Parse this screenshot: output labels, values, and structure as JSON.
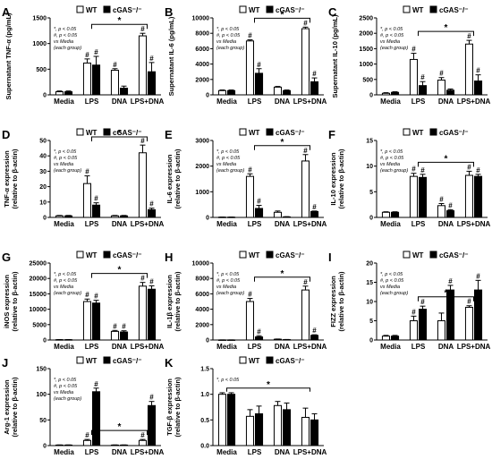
{
  "legend": {
    "wt": "WT",
    "ko": "cGAS⁻/⁻"
  },
  "colors": {
    "wt": "#ffffff",
    "ko": "#000000",
    "stroke": "#000000"
  },
  "significance": {
    "star": "*",
    "hash": "#"
  },
  "chart_data": [
    {
      "panel": "A",
      "type": "bar",
      "categories": [
        "Media",
        "LPS",
        "DNA",
        "LPS+DNA"
      ],
      "series": [
        {
          "name": "WT",
          "values": [
            60,
            620,
            480,
            1150
          ],
          "errors": [
            15,
            80,
            30,
            50
          ]
        },
        {
          "name": "cGAS⁻/⁻",
          "values": [
            60,
            580,
            130,
            450
          ],
          "errors": [
            15,
            170,
            40,
            180
          ]
        }
      ],
      "ylabel": "Supernatant TNF-α (pg/mL)",
      "ylim": [
        0,
        1500
      ],
      "yticks": [
        "0",
        "500",
        "1000",
        "1500"
      ],
      "note": [
        "*, p < 0.05",
        "#, p < 0.05",
        "vs Media",
        "(each group)"
      ],
      "noteStart": 6,
      "noteX": 14,
      "pair": [
        [
          "WT",
          "cGAS⁻/⁻"
        ]
      ],
      "hashes": {
        "wt": [
          1,
          2,
          3
        ],
        "ko": [
          1,
          3
        ]
      }
    },
    {
      "panel": "B",
      "type": "bar",
      "categories": [
        "Media",
        "LPS",
        "DNA",
        "LPS+DNA"
      ],
      "series": [
        {
          "name": "WT",
          "values": [
            550,
            7000,
            1000,
            8600
          ],
          "errors": [
            80,
            150,
            90,
            200
          ]
        },
        {
          "name": "cGAS⁻/⁻",
          "values": [
            550,
            2800,
            550,
            1700
          ],
          "errors": [
            80,
            600,
            80,
            500
          ]
        }
      ],
      "ylabel": "Supernatant IL-6 (pg/mL)",
      "ylim": [
        0,
        10000
      ],
      "yticks": [
        "0",
        "2000",
        "4000",
        "6000",
        "8000",
        "10000"
      ],
      "note": [
        "*, p < 0.05",
        "#, p < 0.05",
        "vs Media",
        "(each group)"
      ],
      "noteStart": 9,
      "noteX": 24,
      "pair": [
        [
          "WT",
          "cGAS⁻/⁻"
        ]
      ],
      "hashes": {
        "wt": [
          1,
          3
        ],
        "ko": [
          1,
          3
        ]
      }
    },
    {
      "panel": "C",
      "type": "bar",
      "categories": [
        "Media",
        "LPS",
        "DNA",
        "LPS+DNA"
      ],
      "series": [
        {
          "name": "WT",
          "values": [
            50,
            1150,
            480,
            1650
          ],
          "errors": [
            20,
            200,
            80,
            120
          ]
        },
        {
          "name": "cGAS⁻/⁻",
          "values": [
            80,
            300,
            150,
            450
          ],
          "errors": [
            20,
            130,
            40,
            200
          ]
        }
      ],
      "ylabel": "Supernatant IL-10 (pg/mL)",
      "ylim": [
        0,
        2500
      ],
      "yticks": [
        "0",
        "500",
        "1000",
        "1500",
        "2000",
        "2500"
      ],
      "note": [
        "*, p < 0.05",
        "#, p < 0.05",
        "vs Media",
        "(each group)"
      ],
      "noteStart": 10,
      "noteX": 16,
      "pair": [
        [
          "WT",
          "cGAS⁻/⁻"
        ]
      ],
      "hashes": {
        "wt": [
          1,
          2,
          3
        ],
        "ko": [
          1,
          3
        ]
      }
    },
    {
      "panel": "D",
      "type": "bar",
      "categories": [
        "Media",
        "LPS",
        "DNA",
        "LPS+DNA"
      ],
      "series": [
        {
          "name": "WT",
          "values": [
            1,
            22,
            1,
            42
          ],
          "errors": [
            0.3,
            5,
            0.3,
            5
          ]
        },
        {
          "name": "cGAS⁻/⁻",
          "values": [
            1,
            8,
            1,
            5
          ],
          "errors": [
            0.3,
            1.5,
            0.3,
            1
          ]
        }
      ],
      "ylabel": "TNF-α expression (relative to β-actin)",
      "ylim": [
        0,
        50
      ],
      "yticks": [
        "0",
        "10",
        "20",
        "30",
        "40",
        "50"
      ],
      "note": [
        "*, p < 0.05",
        "#, p < 0.05",
        "vs Media",
        "(each group)"
      ],
      "noteStart": 3,
      "noteX": 13,
      "pair": [
        [
          "WT",
          "cGAS⁻/⁻"
        ]
      ],
      "hashes": {
        "wt": [
          1,
          3
        ],
        "ko": [
          1,
          3
        ]
      }
    },
    {
      "panel": "E",
      "type": "bar",
      "categories": [
        "Media",
        "LPS",
        "DNA",
        "LPS+DNA"
      ],
      "series": [
        {
          "name": "WT",
          "values": [
            10,
            1600,
            200,
            2200
          ],
          "errors": [
            5,
            100,
            50,
            250
          ]
        },
        {
          "name": "cGAS⁻/⁻",
          "values": [
            10,
            350,
            20,
            230
          ],
          "errors": [
            5,
            120,
            10,
            20
          ]
        }
      ],
      "ylabel": "IL-6 expression (relative to β-actin)",
      "ylim": [
        0,
        3000
      ],
      "yticks": [
        "0",
        "1000",
        "2000",
        "3000"
      ],
      "note": [
        "*, p < 0.05",
        "#, p < 0.05",
        "vs Media",
        "(each group)"
      ],
      "noteStart": 6,
      "noteX": 16,
      "pair": [
        [
          "WT",
          "cGAS⁻/⁻"
        ]
      ],
      "hashes": {
        "wt": [
          1,
          3
        ],
        "ko": [
          1,
          3
        ]
      }
    },
    {
      "panel": "F",
      "type": "bar",
      "categories": [
        "Media",
        "LPS",
        "DNA",
        "LPS+DNA"
      ],
      "series": [
        {
          "name": "WT",
          "values": [
            1,
            8,
            2.3,
            8.2
          ],
          "errors": [
            0.1,
            0.6,
            0.4,
            0.8
          ]
        },
        {
          "name": "cGAS⁻/⁻",
          "values": [
            1,
            7.8,
            1.3,
            8
          ],
          "errors": [
            0.1,
            0.6,
            0.2,
            0.4
          ]
        }
      ],
      "ylabel": "IL-10 expression (relative to β-actin)",
      "ylim": [
        0,
        15
      ],
      "yticks": [
        "0",
        "5",
        "10",
        "15"
      ],
      "note": [
        "*, p < 0.05",
        "#, p < 0.05",
        "vs Media",
        "(each group)"
      ],
      "noteStart": 8,
      "noteX": 14,
      "pair": [
        [
          "WT",
          "cGAS⁻/⁻"
        ]
      ],
      "hashes": {
        "wt": [
          1,
          2,
          3
        ],
        "ko": [
          1,
          2,
          3
        ]
      }
    },
    {
      "panel": "G",
      "type": "bar",
      "categories": [
        "Media",
        "LPS",
        "DNA",
        "LPS+DNA"
      ],
      "series": [
        {
          "name": "WT",
          "values": [
            100,
            12500,
            2800,
            17500
          ],
          "errors": [
            50,
            800,
            300,
            1200
          ]
        },
        {
          "name": "cGAS⁻/⁻",
          "values": [
            100,
            12000,
            2600,
            16500
          ],
          "errors": [
            50,
            900,
            400,
            1100
          ]
        }
      ],
      "ylabel": "iNOS expression (relative to β-actin)",
      "ylim": [
        0,
        25000
      ],
      "yticks": [
        "0",
        "5000",
        "10000",
        "15000",
        "20000",
        "25000"
      ],
      "note": [
        "*, p < 0.05",
        "#, p < 0.05",
        "vs Media",
        "(each group)"
      ],
      "noteStart": 8,
      "noteX": 13,
      "pair": [
        [
          "WT",
          "cGAS⁻/⁻"
        ]
      ],
      "hashes": {
        "wt": [
          1,
          2,
          3
        ],
        "ko": [
          1,
          2,
          3
        ]
      }
    },
    {
      "panel": "H",
      "type": "bar",
      "categories": [
        "Media",
        "LPS",
        "DNA",
        "LPS+DNA"
      ],
      "series": [
        {
          "name": "WT",
          "values": [
            10,
            5000,
            100,
            6500
          ],
          "errors": [
            5,
            400,
            30,
            500
          ]
        },
        {
          "name": "cGAS⁻/⁻",
          "values": [
            10,
            400,
            50,
            600
          ],
          "errors": [
            5,
            150,
            20,
            80
          ]
        }
      ],
      "ylabel": "IL-1β expression (relative to β-actin)",
      "ylim": [
        0,
        10000
      ],
      "yticks": [
        "0",
        "2000",
        "4000",
        "6000",
        "8000",
        "10000"
      ],
      "note": [
        "*, p < 0.05",
        "#, p < 0.05",
        "vs Media",
        "(each group)"
      ],
      "noteStart": 8,
      "noteX": 13,
      "pair": [
        [
          "WT",
          "cGAS⁻/⁻"
        ]
      ],
      "hashes": {
        "wt": [
          1,
          3
        ],
        "ko": [
          1,
          3
        ]
      }
    },
    {
      "panel": "I",
      "type": "bar",
      "categories": [
        "Media",
        "LPS",
        "DNA",
        "LPS+DNA"
      ],
      "series": [
        {
          "name": "WT",
          "values": [
            1,
            5,
            5,
            8.5
          ],
          "errors": [
            0.2,
            1.2,
            2,
            0.4
          ]
        },
        {
          "name": "cGAS⁻/⁻",
          "values": [
            1,
            8,
            13,
            13
          ],
          "errors": [
            0.2,
            0.8,
            1.2,
            2.5
          ]
        }
      ],
      "ylabel": "FIZZ expression (relative to β-actin)",
      "ylim": [
        0,
        20
      ],
      "yticks": [
        "0",
        "5",
        "10",
        "15",
        "20"
      ],
      "note": [
        "*, p < 0.05",
        "#, p < 0.05",
        "vs Media",
        "(each group)"
      ],
      "noteStart": 13,
      "noteX": 8,
      "pair": [
        [
          "WT",
          "cGAS⁻/⁻"
        ]
      ],
      "hashes": {
        "wt": [
          1,
          3
        ],
        "ko": [
          1,
          2,
          3
        ]
      }
    },
    {
      "panel": "J",
      "type": "bar",
      "categories": [
        "Media",
        "LPS",
        "DNA",
        "LPS+DNA"
      ],
      "series": [
        {
          "name": "WT",
          "values": [
            1,
            10,
            1,
            10
          ],
          "errors": [
            0.3,
            2,
            0.3,
            2
          ]
        },
        {
          "name": "cGAS⁻/⁻",
          "values": [
            1,
            105,
            1,
            78
          ],
          "errors": [
            0.3,
            7,
            0.3,
            8
          ]
        }
      ],
      "ylabel": "Arg-1 expression (relative to β-actin)",
      "ylim": [
        0,
        150
      ],
      "yticks": [
        "0",
        "50",
        "100",
        "150"
      ],
      "note": [
        "*, p < 0.05",
        "#, p < 0.05",
        "vs Media",
        "(each group)"
      ],
      "noteStart": 128,
      "noteX": 6,
      "pair": [
        [
          "WT",
          "cGAS⁻/⁻"
        ]
      ],
      "hashes": {
        "wt": [
          1,
          3
        ],
        "ko": [
          1,
          3
        ]
      }
    },
    {
      "panel": "K",
      "type": "bar",
      "categories": [
        "Media",
        "LPS",
        "DNA",
        "LPS+DNA"
      ],
      "series": [
        {
          "name": "WT",
          "values": [
            1,
            0.57,
            0.78,
            0.55
          ],
          "errors": [
            0.03,
            0.13,
            0.08,
            0.18
          ]
        },
        {
          "name": "cGAS⁻/⁻",
          "values": [
            1,
            0.62,
            0.7,
            0.5
          ],
          "errors": [
            0.03,
            0.15,
            0.13,
            0.12
          ]
        }
      ],
      "ylabel": "TGF-β expression (relative to β-actin)",
      "ylim": [
        0,
        1.5
      ],
      "yticks": [
        "0.0",
        "0.5",
        "1.0",
        "1.5"
      ],
      "note": [
        "*, p < 0.05"
      ],
      "noteStart": 1.45,
      "noteX": 4,
      "pair": [
        [
          "WT",
          "cGAS⁻/⁻"
        ]
      ],
      "hashes": {
        "wt": [],
        "ko": []
      }
    }
  ]
}
